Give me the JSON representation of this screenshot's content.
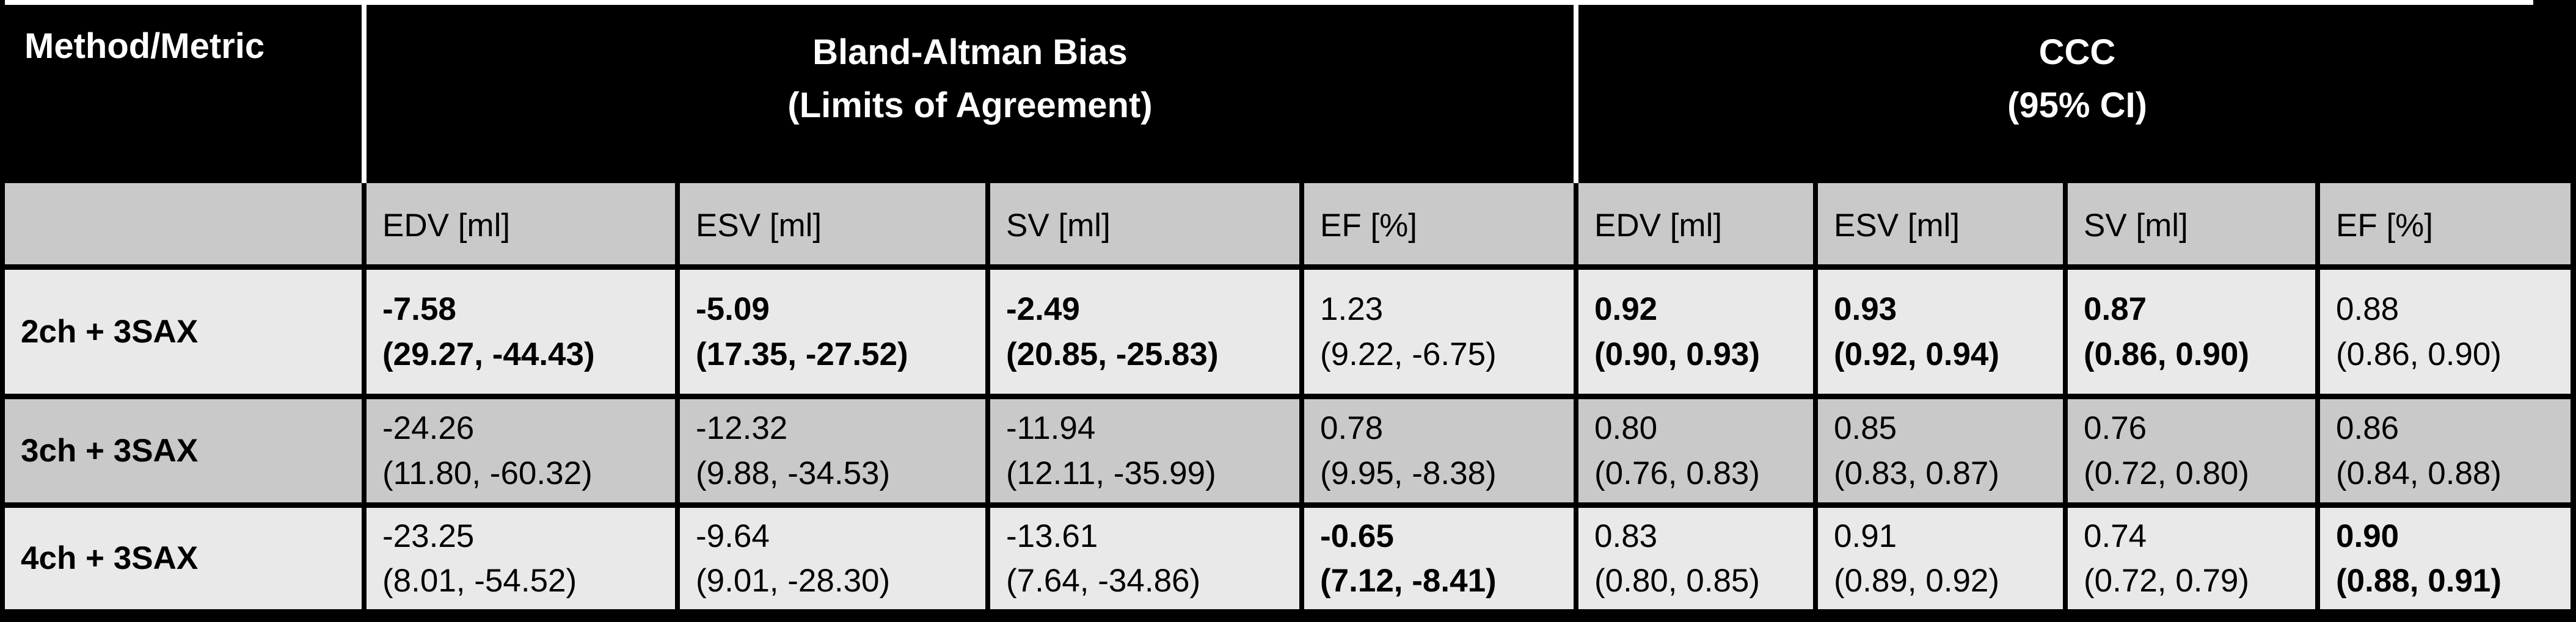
{
  "table": {
    "corner_header": "Method/Metric",
    "group_headers": [
      {
        "line1": "Bland-Altman Bias",
        "line2": "(Limits of Agreement)"
      },
      {
        "line1": "CCC",
        "line2": "(95% CI)"
      }
    ],
    "sub_headers": [
      "EDV [ml]",
      "ESV [ml]",
      "SV [ml]",
      "EF [%]",
      "EDV [ml]",
      "ESV [ml]",
      "SV [ml]",
      "EF [%]"
    ],
    "rows": [
      {
        "label": "2ch + 3SAX",
        "cells": [
          {
            "value": "-7.58",
            "ci": "(29.27, -44.43)",
            "bold": true
          },
          {
            "value": "-5.09",
            "ci": "(17.35, -27.52)",
            "bold": true
          },
          {
            "value": "-2.49",
            "ci": "(20.85, -25.83)",
            "bold": true
          },
          {
            "value": "1.23",
            "ci": "(9.22, -6.75)",
            "bold": false
          },
          {
            "value": "0.92",
            "ci": "(0.90, 0.93)",
            "bold": true
          },
          {
            "value": "0.93",
            "ci": "(0.92, 0.94)",
            "bold": true
          },
          {
            "value": "0.87",
            "ci": "(0.86, 0.90)",
            "bold": true
          },
          {
            "value": "0.88",
            "ci": "(0.86, 0.90)",
            "bold": false
          }
        ]
      },
      {
        "label": "3ch + 3SAX",
        "cells": [
          {
            "value": "-24.26",
            "ci": "(11.80, -60.32)",
            "bold": false
          },
          {
            "value": "-12.32",
            "ci": "(9.88, -34.53)",
            "bold": false
          },
          {
            "value": "-11.94",
            "ci": "(12.11, -35.99)",
            "bold": false
          },
          {
            "value": "0.78",
            "ci": "(9.95, -8.38)",
            "bold": false
          },
          {
            "value": "0.80",
            "ci": "(0.76, 0.83)",
            "bold": false
          },
          {
            "value": "0.85",
            "ci": "(0.83, 0.87)",
            "bold": false
          },
          {
            "value": "0.76",
            "ci": "(0.72, 0.80)",
            "bold": false
          },
          {
            "value": "0.86",
            "ci": "(0.84, 0.88)",
            "bold": false
          }
        ]
      },
      {
        "label": "4ch + 3SAX",
        "cells": [
          {
            "value": "-23.25",
            "ci": "(8.01, -54.52)",
            "bold": false
          },
          {
            "value": "-9.64",
            "ci": "(9.01, -28.30)",
            "bold": false
          },
          {
            "value": "-13.61",
            "ci": "(7.64, -34.86)",
            "bold": false
          },
          {
            "value": "-0.65",
            "ci": "(7.12, -8.41)",
            "bold": true
          },
          {
            "value": "0.83",
            "ci": "(0.80, 0.85)",
            "bold": false
          },
          {
            "value": "0.91",
            "ci": "(0.89, 0.92)",
            "bold": false
          },
          {
            "value": "0.74",
            "ci": "(0.72, 0.79)",
            "bold": false
          },
          {
            "value": "0.90",
            "ci": "(0.88, 0.91)",
            "bold": true
          }
        ]
      }
    ],
    "colors": {
      "header_bg": "#000000",
      "header_text": "#ffffff",
      "row_light": "#e9e9e9",
      "row_dark": "#c9c9c9",
      "border": "#000000",
      "top_rule": "#ffffff"
    }
  },
  "chart_data": {
    "type": "table",
    "title": "Bland-Altman Bias (Limits of Agreement) and CCC (95% CI) per method and metric",
    "column_groups": [
      "Bland-Altman Bias (Limits of Agreement)",
      "CCC (95% CI)"
    ],
    "columns": [
      "Method/Metric",
      "BA EDV [ml]",
      "BA ESV [ml]",
      "BA SV [ml]",
      "BA EF [%]",
      "CCC EDV [ml]",
      "CCC ESV [ml]",
      "CCC SV [ml]",
      "CCC EF [%]"
    ],
    "rows": [
      [
        "2ch + 3SAX",
        "-7.58 (29.27, -44.43)",
        "-5.09 (17.35, -27.52)",
        "-2.49 (20.85, -25.83)",
        "1.23 (9.22, -6.75)",
        "0.92 (0.90, 0.93)",
        "0.93 (0.92, 0.94)",
        "0.87 (0.86, 0.90)",
        "0.88 (0.86, 0.90)"
      ],
      [
        "3ch + 3SAX",
        "-24.26 (11.80, -60.32)",
        "-12.32 (9.88, -34.53)",
        "-11.94 (12.11, -35.99)",
        "0.78 (9.95, -8.38)",
        "0.80 (0.76, 0.83)",
        "0.85 (0.83, 0.87)",
        "0.76 (0.72, 0.80)",
        "0.86 (0.84, 0.88)"
      ],
      [
        "4ch + 3SAX",
        "-23.25 (8.01, -54.52)",
        "-9.64 (9.01, -28.30)",
        "-13.61 (7.64, -34.86)",
        "-0.65 (7.12, -8.41)",
        "0.83 (0.80, 0.85)",
        "0.91 (0.89, 0.92)",
        "0.74 (0.72, 0.79)",
        "0.90 (0.88, 0.91)"
      ]
    ]
  }
}
